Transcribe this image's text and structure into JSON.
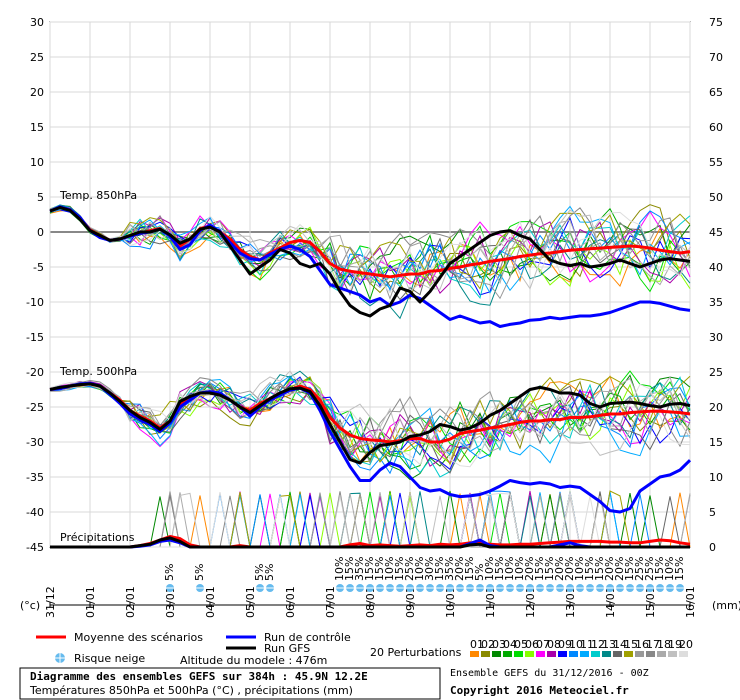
{
  "chart_data": {
    "type": "line",
    "title": "Diagramme des ensembles GEFS sur 384h : 45.9N 12.2E",
    "subtitle": "Températures 850hPa et 500hPa (°C) , précipitations (mm)",
    "run_info": "Ensemble GEFS du 31/12/2016 - 00Z",
    "copyright": "Copyright 2016 Meteociel.fr",
    "model_altitude": "Altitude du modele : 476m",
    "left_unit": "(°c)",
    "right_unit": "(mm)",
    "ylim_left": [
      -45,
      30
    ],
    "ylim_right": [
      0,
      75
    ],
    "y_ticks_left": [
      30,
      25,
      20,
      15,
      10,
      5,
      0,
      -5,
      -10,
      -15,
      -20,
      -25,
      -30,
      -35,
      -40,
      -45
    ],
    "y_ticks_right": [
      75,
      70,
      65,
      60,
      55,
      50,
      45,
      40,
      35,
      30,
      25,
      20,
      15,
      10,
      5,
      0
    ],
    "grid": true,
    "x_ticks": [
      "31/12",
      "01/01",
      "02/01",
      "03/01",
      "04/01",
      "05/01",
      "06/01",
      "07/01",
      "08/01",
      "09/01",
      "10/01",
      "11/01",
      "12/01",
      "13/01",
      "14/01",
      "15/01",
      "16/01"
    ],
    "panel_labels": {
      "t850": "Temp. 850hPa",
      "t500": "Temp. 500hPa",
      "precip": "Précipitations"
    },
    "x_days": [
      0,
      0.25,
      0.5,
      0.75,
      1,
      1.25,
      1.5,
      1.75,
      2,
      2.25,
      2.5,
      2.75,
      3,
      3.25,
      3.5,
      3.75,
      4,
      4.25,
      4.5,
      4.75,
      5,
      5.25,
      5.5,
      5.75,
      6,
      6.25,
      6.5,
      6.75,
      7,
      7.25,
      7.5,
      7.75,
      8,
      8.25,
      8.5,
      8.75,
      9,
      9.25,
      9.5,
      9.75,
      10,
      10.25,
      10.5,
      10.75,
      11,
      11.25,
      11.5,
      11.75,
      12,
      12.25,
      12.5,
      12.75,
      13,
      13.25,
      13.5,
      13.75,
      14,
      14.25,
      14.5,
      14.75,
      15,
      15.25,
      15.5,
      15.75,
      16
    ],
    "series": [
      {
        "name": "Moyenne des scénarios",
        "color": "#ff0000",
        "panel": "t850",
        "values": [
          3,
          3.5,
          3.2,
          2,
          0.3,
          -0.5,
          -1.2,
          -1,
          -0.5,
          -0.2,
          0.2,
          0.5,
          -0.5,
          -2,
          -1,
          0.5,
          0.8,
          0,
          -1,
          -2.5,
          -3.5,
          -4,
          -3,
          -2.3,
          -1.5,
          -1.2,
          -1.5,
          -2.8,
          -4.5,
          -5.3,
          -5.6,
          -5.8,
          -6,
          -6.2,
          -6.4,
          -6.2,
          -6,
          -6,
          -5.6,
          -5.5,
          -5.2,
          -5,
          -4.7,
          -4.5,
          -4.2,
          -4,
          -3.8,
          -3.5,
          -3.3,
          -3.1,
          -3,
          -2.8,
          -2.6,
          -2.5,
          -2.4,
          -2.3,
          -2.2,
          -2.1,
          -2,
          -2.1,
          -2.3,
          -2.6,
          -2.8,
          -3,
          -2.8
        ]
      },
      {
        "name": "Run de contrôle",
        "color": "#0000ff",
        "panel": "t850",
        "values": [
          3,
          3.6,
          3.2,
          2.1,
          0.2,
          -0.8,
          -1.2,
          -1,
          -0.6,
          -0.2,
          0,
          0.4,
          -0.6,
          -2.5,
          -1.8,
          0.2,
          1,
          0,
          -1.5,
          -3,
          -3.8,
          -4,
          -3.2,
          -2.5,
          -2,
          -2.5,
          -3.5,
          -5.5,
          -7.5,
          -8,
          -8.5,
          -9,
          -10,
          -9.5,
          -10.5,
          -10,
          -9,
          -9.5,
          -10.5,
          -11.5,
          -12.5,
          -12,
          -12.5,
          -13,
          -12.8,
          -13.5,
          -13.2,
          -13,
          -12.6,
          -12.5,
          -12.2,
          -12.4,
          -12.2,
          -12,
          -12,
          -11.8,
          -11.5,
          -11,
          -10.5,
          -10,
          -10,
          -10.2,
          -10.6,
          -11,
          -11.2
        ]
      },
      {
        "name": "Run GFS",
        "color": "#000000",
        "panel": "t850",
        "values": [
          3,
          3.5,
          3.1,
          1.8,
          0.2,
          -0.5,
          -1.2,
          -1,
          -0.5,
          0,
          0,
          0.4,
          -0.4,
          -1.6,
          -1,
          0.4,
          0.7,
          0,
          -2,
          -4,
          -6,
          -5,
          -4,
          -2.5,
          -3,
          -4.5,
          -5,
          -4.5,
          -6,
          -8.5,
          -10.5,
          -11.5,
          -12,
          -11,
          -10.5,
          -8,
          -8.5,
          -10,
          -8.5,
          -6.5,
          -4.5,
          -3.5,
          -2.5,
          -1.5,
          -0.5,
          0,
          0.2,
          -0.5,
          -1,
          -2.5,
          -4,
          -4.5,
          -4.8,
          -4.5,
          -5,
          -4.8,
          -4.5,
          -4,
          -4.5,
          -5,
          -4.5,
          -4,
          -3.8,
          -4,
          -4.2
        ]
      },
      {
        "name": "Moyenne des scénarios",
        "color": "#ff0000",
        "panel": "t500",
        "values": [
          -22.5,
          -22.3,
          -22,
          -21.8,
          -21.7,
          -22,
          -23,
          -24,
          -25.5,
          -26.3,
          -27,
          -28,
          -27,
          -24.5,
          -24,
          -23,
          -23,
          -23.2,
          -24,
          -25,
          -25.5,
          -24.5,
          -23.8,
          -23,
          -22.5,
          -22,
          -22.5,
          -24,
          -26.5,
          -28,
          -29,
          -29.5,
          -29.7,
          -29.8,
          -30,
          -29.8,
          -29.5,
          -29.5,
          -30,
          -30,
          -29.6,
          -28.8,
          -28.5,
          -28.3,
          -28,
          -27.8,
          -27.5,
          -27.2,
          -27,
          -27,
          -26.8,
          -26.8,
          -26.5,
          -26.5,
          -26.4,
          -26.2,
          -26,
          -26,
          -25.8,
          -25.7,
          -25.6,
          -25.6,
          -25.7,
          -25.8,
          -26
        ]
      },
      {
        "name": "Run de contrôle",
        "color": "#0000ff",
        "panel": "t500",
        "values": [
          -22.5,
          -22.4,
          -22,
          -21.7,
          -21.6,
          -22,
          -23.2,
          -24.5,
          -26,
          -26.8,
          -27.5,
          -28.5,
          -27.3,
          -25,
          -24,
          -23,
          -22.8,
          -23,
          -24,
          -25,
          -26.3,
          -25,
          -24,
          -23.3,
          -22.6,
          -22.3,
          -23,
          -25.5,
          -28.5,
          -31,
          -33.5,
          -35.5,
          -35.5,
          -34,
          -33,
          -33.5,
          -35,
          -36.5,
          -37,
          -36.8,
          -37.5,
          -37.8,
          -37.7,
          -37.5,
          -37,
          -36.3,
          -35.5,
          -35.8,
          -36,
          -35.8,
          -36,
          -36.5,
          -36.3,
          -36.5,
          -37.5,
          -38.5,
          -39.8,
          -40,
          -39.5,
          -37,
          -36,
          -35,
          -34.7,
          -34,
          -32.6
        ]
      },
      {
        "name": "Run GFS",
        "color": "#000000",
        "panel": "t500",
        "values": [
          -22.5,
          -22.2,
          -22,
          -21.8,
          -21.7,
          -22,
          -23,
          -24.2,
          -25.5,
          -26.5,
          -27.2,
          -28.2,
          -27,
          -24.2,
          -23.5,
          -23,
          -23,
          -23.3,
          -24,
          -25,
          -25.8,
          -24.8,
          -23.8,
          -23,
          -22.4,
          -22.3,
          -22.8,
          -24.8,
          -27.5,
          -30,
          -32.5,
          -33,
          -31.5,
          -30.5,
          -30.3,
          -30,
          -29.2,
          -29,
          -28.5,
          -27.5,
          -27.8,
          -28.3,
          -28,
          -27.3,
          -26.2,
          -25.5,
          -24.5,
          -23.5,
          -22.5,
          -22.2,
          -22.5,
          -23,
          -23,
          -23.3,
          -24.5,
          -25,
          -24.5,
          -24.4,
          -24.3,
          -24.5,
          -24.8,
          -25,
          -24.6,
          -24.5,
          -24.8
        ]
      },
      {
        "name": "Moyenne des scénarios",
        "color": "#ff0000",
        "panel": "precip",
        "values": [
          0,
          0,
          0,
          0,
          0,
          0,
          0,
          0,
          0,
          0.2,
          0.5,
          1,
          1.5,
          1.2,
          0.3,
          0,
          0,
          0,
          0,
          0.2,
          0,
          0,
          0,
          0,
          0,
          0,
          0,
          0,
          0,
          0,
          0.3,
          0.5,
          0.2,
          0.3,
          0.2,
          0.1,
          0.2,
          0.3,
          0.2,
          0.4,
          0.3,
          0.4,
          0.6,
          0.5,
          0.4,
          0.3,
          0.3,
          0.4,
          0.4,
          0.5,
          0.6,
          0.7,
          0.8,
          0.8,
          0.8,
          0.8,
          0.7,
          0.7,
          0.6,
          0.6,
          0.8,
          1,
          0.9,
          0.6,
          0.4
        ]
      },
      {
        "name": "Run de contrôle",
        "color": "#0000ff",
        "panel": "precip",
        "values": [
          0,
          0,
          0,
          0,
          0,
          0,
          0,
          0,
          0,
          0.1,
          0.3,
          0.8,
          1,
          0.6,
          0,
          0,
          0,
          0,
          0,
          0,
          0,
          0,
          0,
          0,
          0,
          0,
          0,
          0,
          0,
          0,
          0,
          0,
          0,
          0,
          0,
          0,
          0,
          0,
          0,
          0,
          0,
          0,
          0.5,
          1,
          0.2,
          0,
          0,
          0,
          0,
          0,
          0,
          0.3,
          0.6,
          0.2,
          0,
          0,
          0,
          0,
          0,
          0,
          0,
          0,
          0,
          0,
          0
        ]
      },
      {
        "name": "Run GFS",
        "color": "#000000",
        "panel": "precip",
        "values": [
          0,
          0,
          0,
          0,
          0,
          0,
          0,
          0,
          0,
          0.2,
          0.4,
          1,
          1.3,
          0.8,
          0,
          0,
          0,
          0,
          0,
          0,
          0,
          0,
          0,
          0,
          0,
          0,
          0,
          0,
          0,
          0,
          0,
          0,
          0,
          0,
          0,
          0,
          0,
          0,
          0,
          0,
          0,
          0,
          0.3,
          0.4,
          0,
          0,
          0,
          0,
          0,
          0,
          0,
          0,
          0,
          0,
          0,
          0,
          0,
          0,
          0,
          0,
          0,
          0,
          0,
          0,
          0
        ]
      }
    ],
    "snow_risk": [
      {
        "day": 3,
        "label": "5%"
      },
      {
        "day": 3.75,
        "label": "5%"
      },
      {
        "day": 5.25,
        "label": "5%"
      },
      {
        "day": 5.5,
        "label": "5%"
      },
      {
        "day": 7.25,
        "label": "10%"
      },
      {
        "day": 7.5,
        "label": "15%"
      },
      {
        "day": 7.75,
        "label": "35%"
      },
      {
        "day": 8,
        "label": "15%"
      },
      {
        "day": 8.25,
        "label": "15%"
      },
      {
        "day": 8.5,
        "label": "10%"
      },
      {
        "day": 8.75,
        "label": "15%"
      },
      {
        "day": 9,
        "label": "25%"
      },
      {
        "day": 9.25,
        "label": "10%"
      },
      {
        "day": 9.5,
        "label": "30%"
      },
      {
        "day": 9.75,
        "label": "15%"
      },
      {
        "day": 10,
        "label": "35%"
      },
      {
        "day": 10.25,
        "label": "20%"
      },
      {
        "day": 10.5,
        "label": "15%"
      },
      {
        "day": 10.75,
        "label": "5%"
      },
      {
        "day": 11,
        "label": "10%"
      },
      {
        "day": 11.25,
        "label": "15%"
      },
      {
        "day": 11.5,
        "label": "10%"
      },
      {
        "day": 11.75,
        "label": "10%"
      },
      {
        "day": 12,
        "label": "20%"
      },
      {
        "day": 12.25,
        "label": "15%"
      },
      {
        "day": 12.5,
        "label": "15%"
      },
      {
        "day": 12.75,
        "label": "20%"
      },
      {
        "day": 13,
        "label": "20%"
      },
      {
        "day": 13.25,
        "label": "10%"
      },
      {
        "day": 13.5,
        "label": "15%"
      },
      {
        "day": 13.75,
        "label": "15%"
      },
      {
        "day": 14,
        "label": "20%"
      },
      {
        "day": 14.25,
        "label": "20%"
      },
      {
        "day": 14.5,
        "label": "15%"
      },
      {
        "day": 14.75,
        "label": "25%"
      },
      {
        "day": 15,
        "label": "25%"
      },
      {
        "day": 15.25,
        "label": "15%"
      },
      {
        "day": 15.5,
        "label": "10%"
      },
      {
        "day": 15.75,
        "label": "15%"
      }
    ],
    "legend": {
      "mean_label": "Moyenne des scénarios",
      "control_label": "Run de contrôle",
      "gfs_label": "Run GFS",
      "snow_label": "Risque neige",
      "perturbations_label": "20 Perturbations",
      "perturbation_numbers": [
        "01",
        "02",
        "03",
        "04",
        "05",
        "06",
        "07",
        "08",
        "09",
        "10",
        "11",
        "12",
        "13",
        "14",
        "15",
        "16",
        "17",
        "18",
        "19",
        "20"
      ],
      "perturbation_colors": [
        "#ff8800",
        "#8a8a00",
        "#008800",
        "#00aa00",
        "#00dd00",
        "#88ff00",
        "#ff00ff",
        "#aa00aa",
        "#0000ff",
        "#0088ff",
        "#00aaff",
        "#00cccc",
        "#008888",
        "#666666",
        "#a0a000",
        "#999999",
        "#888888",
        "#aaaaaa",
        "#c0c0c0",
        "#dddddd"
      ],
      "positions": [
        "bottom-left",
        "bottom-left",
        "bottom-left",
        "bottom-left",
        "bottom-left"
      ]
    }
  }
}
